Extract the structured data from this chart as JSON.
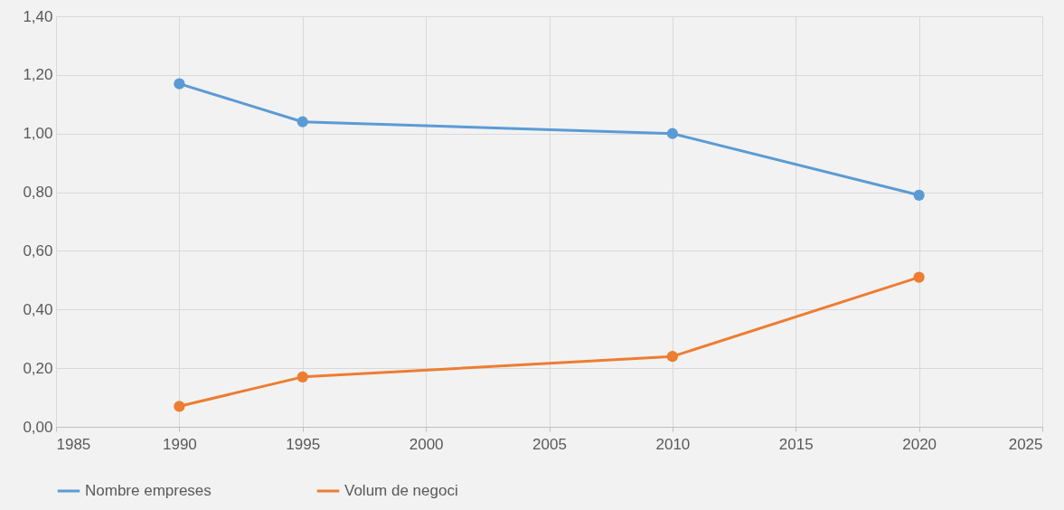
{
  "chart_data": {
    "type": "line",
    "x": [
      1990,
      1995,
      2010,
      2020
    ],
    "series": [
      {
        "name": "Nombre empreses",
        "color": "#5b9bd5",
        "values": [
          1.17,
          1.04,
          1.0,
          0.79
        ]
      },
      {
        "name": "Volum de negoci",
        "color": "#ed7d31",
        "values": [
          0.07,
          0.17,
          0.24,
          0.51
        ]
      }
    ],
    "xlim": [
      1985,
      2025
    ],
    "xticks": [
      1985,
      1990,
      1995,
      2000,
      2005,
      2010,
      2015,
      2020,
      2025
    ],
    "ylim": [
      0,
      1.4
    ],
    "yticks": [
      {
        "value": 0,
        "label": "0,00"
      },
      {
        "value": 0.2,
        "label": "0,20"
      },
      {
        "value": 0.4,
        "label": "0,40"
      },
      {
        "value": 0.6,
        "label": "0,60"
      },
      {
        "value": 0.8,
        "label": "0,80"
      },
      {
        "value": 1.0,
        "label": "1,00"
      },
      {
        "value": 1.2,
        "label": "1,20"
      },
      {
        "value": 1.4,
        "label": "1,40"
      }
    ],
    "grid": true,
    "legend": "bottom",
    "marker": "circle",
    "line_style": "solid"
  }
}
